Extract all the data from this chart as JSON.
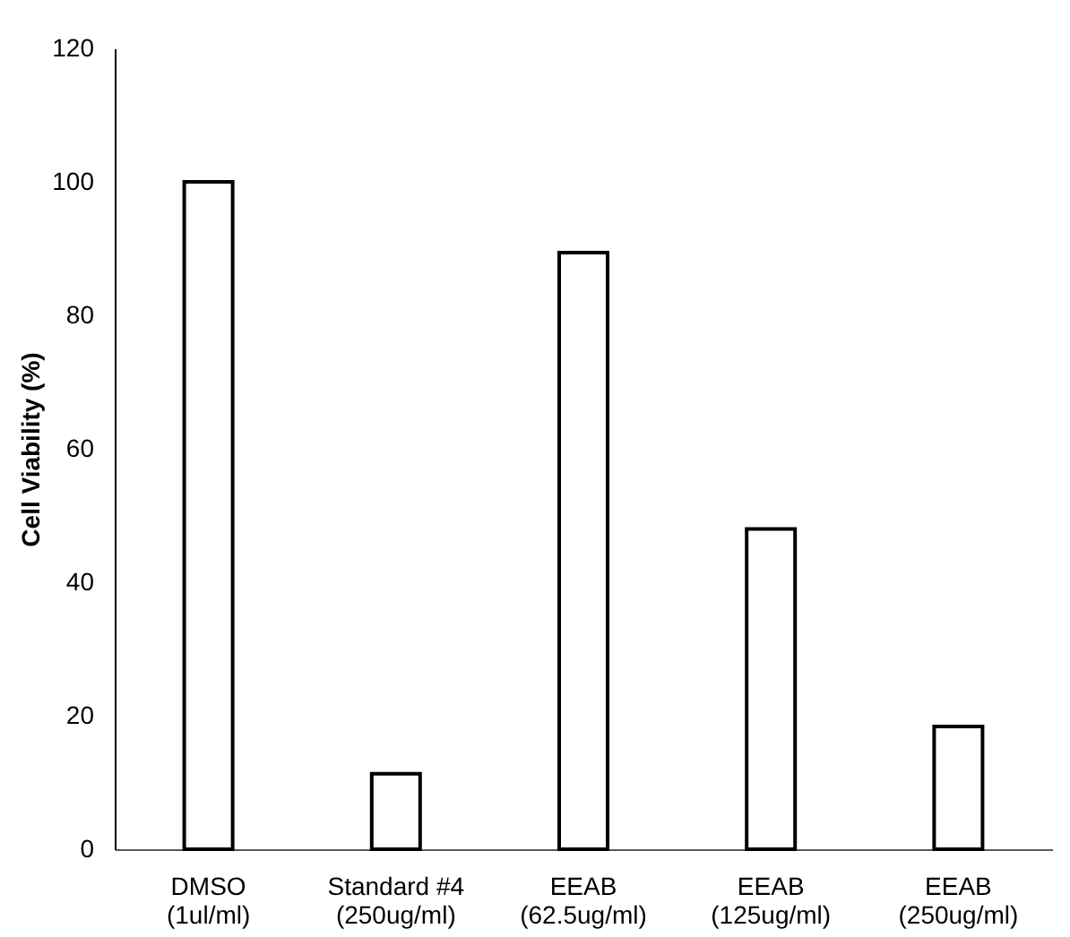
{
  "chart_data": {
    "type": "bar",
    "ylabel": "Cell Viability (%)",
    "categories": [
      "DMSO\n(1ul/ml)",
      "Standard #4\n(250ug/ml)",
      "EEAB\n(62.5ug/ml)",
      "EEAB\n(125ug/ml)",
      "EEAB\n(250ug/ml)"
    ],
    "values": [
      100,
      11.3,
      89.4,
      48.0,
      18.4
    ],
    "color": "#ffffff",
    "ylim": [
      0,
      120
    ],
    "yticks": [
      0,
      20,
      40,
      60,
      80,
      100,
      120
    ],
    "grid": false
  }
}
